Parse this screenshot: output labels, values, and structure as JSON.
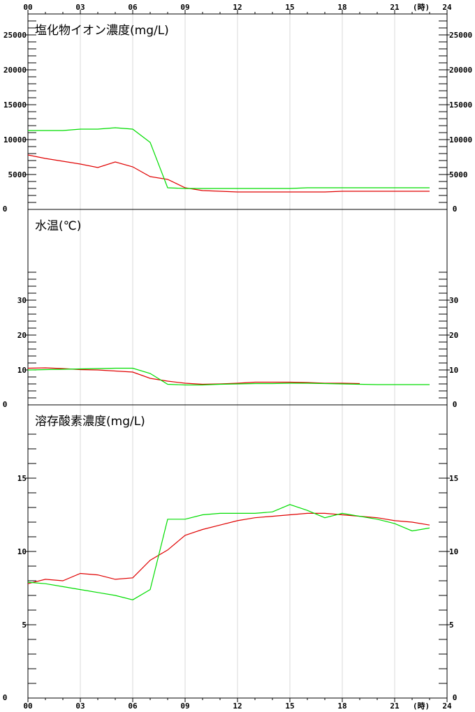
{
  "x_axis": {
    "ticks": [
      "00",
      "03",
      "06",
      "09",
      "12",
      "15",
      "18",
      "21",
      "24"
    ],
    "unit": "(時)",
    "range": [
      0,
      24
    ]
  },
  "colors": {
    "series_a": "#e00000",
    "series_b": "#00dd00",
    "grid": "#d8d8d8",
    "frame": "#000000"
  },
  "chart_data": [
    {
      "type": "line",
      "title": "塩化物イオン濃度(mg/L)",
      "ylim": [
        0,
        28000
      ],
      "yticks": [
        0,
        5000,
        10000,
        15000,
        20000,
        25000
      ],
      "minor_step": 1000,
      "minor_max": 27000,
      "x": [
        0,
        1,
        2,
        3,
        4,
        5,
        6,
        7,
        8,
        9,
        10,
        11,
        12,
        13,
        14,
        15,
        16,
        17,
        18,
        19,
        20,
        21,
        22,
        23
      ],
      "series": [
        {
          "color": "#e00000",
          "values": [
            7800,
            7300,
            6900,
            6500,
            6000,
            6800,
            6100,
            4700,
            4300,
            3100,
            2700,
            2600,
            2500,
            2500,
            2500,
            2500,
            2500,
            2500,
            2600,
            2600,
            2600,
            2600,
            2600,
            2600
          ]
        },
        {
          "color": "#00dd00",
          "values": [
            11300,
            11300,
            11300,
            11500,
            11500,
            11700,
            11500,
            9600,
            3100,
            3000,
            3000,
            3000,
            3000,
            3000,
            3000,
            3000,
            3100,
            3100,
            3100,
            3100,
            3100,
            3100,
            3100,
            3100
          ]
        }
      ]
    },
    {
      "type": "line",
      "title": "水温(℃)",
      "ylim": [
        0,
        56
      ],
      "yticks": [
        0,
        10,
        20,
        30
      ],
      "minor_step": 2,
      "minor_max": 38,
      "x": [
        0,
        1,
        2,
        3,
        4,
        5,
        6,
        7,
        8,
        9,
        10,
        11,
        12,
        13,
        14,
        15,
        16,
        17,
        18,
        19,
        20,
        21,
        22,
        23
      ],
      "series": [
        {
          "color": "#e00000",
          "values": [
            10.5,
            10.6,
            10.4,
            10.1,
            10.0,
            9.7,
            9.4,
            7.6,
            6.8,
            6.2,
            5.9,
            6.0,
            6.2,
            6.5,
            6.5,
            6.5,
            6.4,
            6.2,
            6.2,
            6.1,
            null,
            null,
            null,
            null
          ]
        },
        {
          "color": "#00dd00",
          "values": [
            10.0,
            10.1,
            10.2,
            10.3,
            10.4,
            10.5,
            10.5,
            9.0,
            5.9,
            5.7,
            5.7,
            5.9,
            6.0,
            6.1,
            6.1,
            6.2,
            6.2,
            6.1,
            6.0,
            5.9,
            5.8,
            5.8,
            5.8,
            5.8
          ]
        }
      ]
    },
    {
      "type": "line",
      "title": "溶存酸素濃度(mg/L)",
      "ylim": [
        0,
        20
      ],
      "yticks": [
        0,
        5,
        10,
        15
      ],
      "minor_step": 1,
      "minor_max": 18,
      "x": [
        0,
        1,
        2,
        3,
        4,
        5,
        6,
        7,
        8,
        9,
        10,
        11,
        12,
        13,
        14,
        15,
        16,
        17,
        18,
        19,
        20,
        21,
        22,
        23
      ],
      "series": [
        {
          "color": "#e00000",
          "values": [
            7.8,
            8.1,
            8.0,
            8.5,
            8.4,
            8.1,
            8.2,
            9.4,
            10.1,
            11.1,
            11.5,
            11.8,
            12.1,
            12.3,
            12.4,
            12.5,
            12.6,
            12.6,
            12.5,
            12.4,
            12.3,
            12.1,
            12.0,
            11.8
          ]
        },
        {
          "color": "#00dd00",
          "values": [
            7.9,
            7.8,
            7.6,
            7.4,
            7.2,
            7.0,
            6.7,
            7.4,
            12.2,
            12.2,
            12.5,
            12.6,
            12.6,
            12.6,
            12.7,
            13.2,
            12.8,
            12.3,
            12.6,
            12.4,
            12.2,
            11.9,
            11.4,
            11.6
          ]
        }
      ]
    }
  ]
}
